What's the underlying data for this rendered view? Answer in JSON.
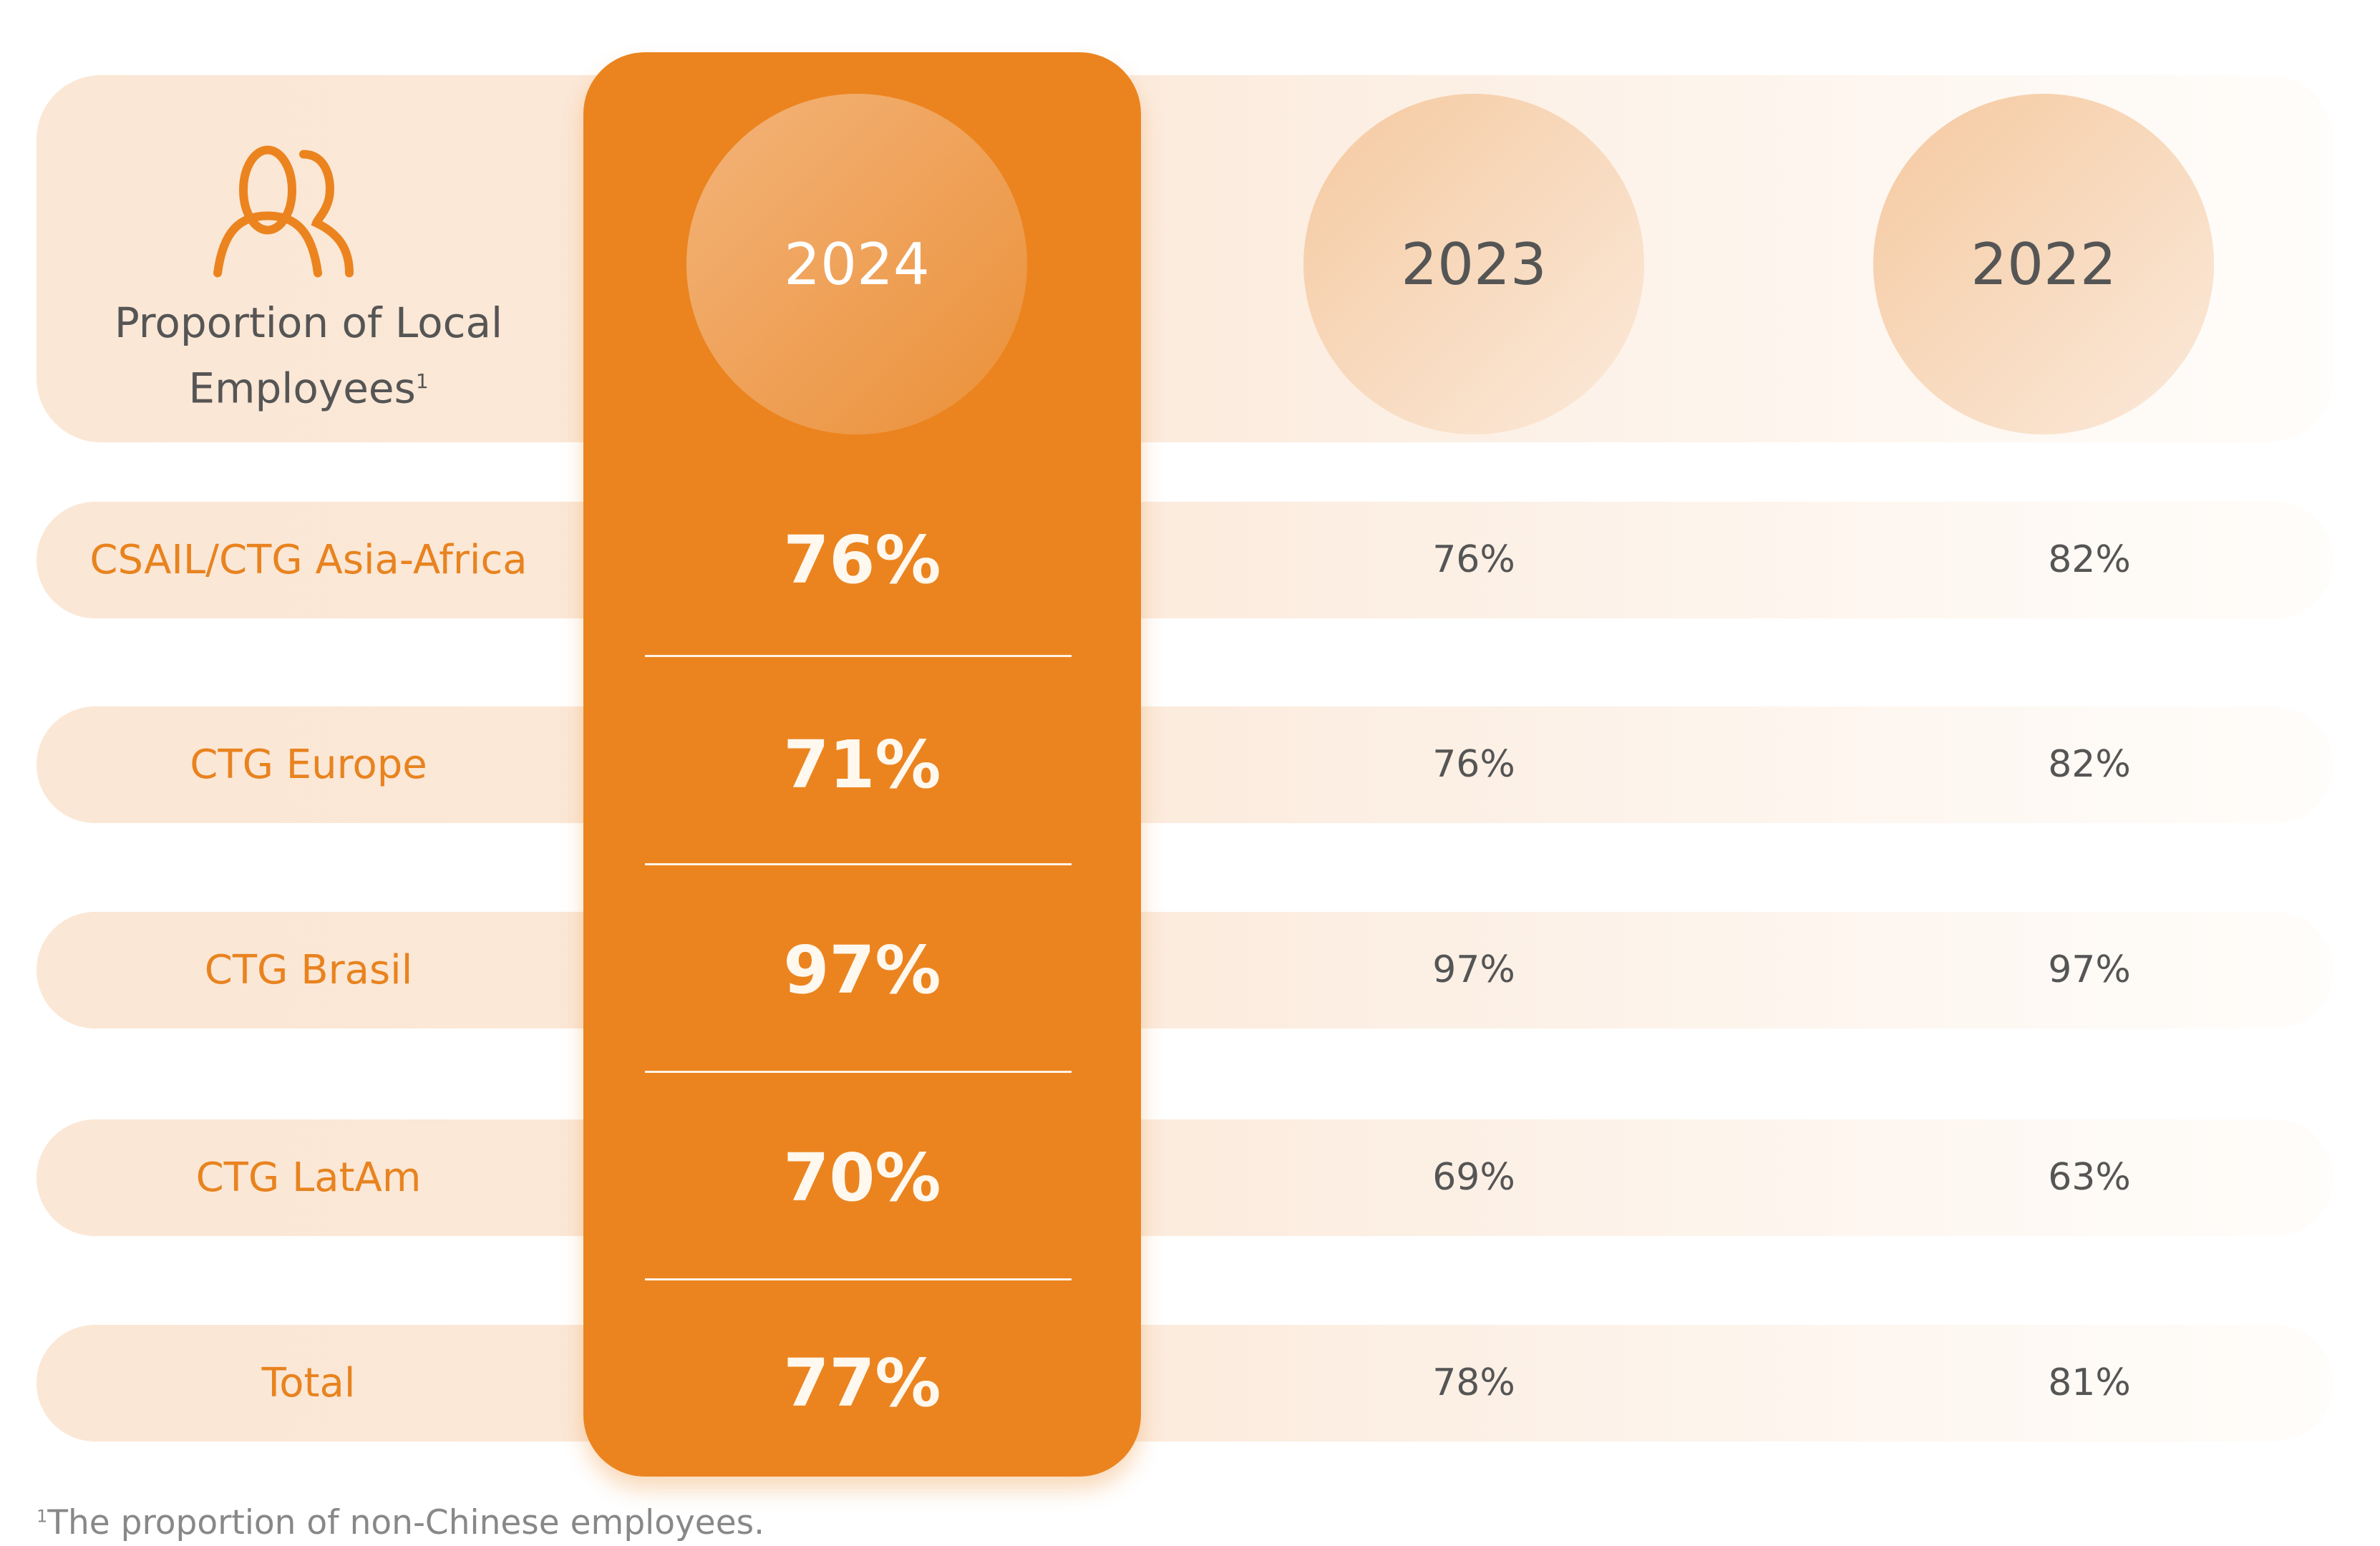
{
  "header": {
    "title": "Proportion of Local Employees",
    "title_footnote_mark": "1",
    "icon": "people-icon"
  },
  "years": [
    "2024",
    "2023",
    "2022"
  ],
  "rows": [
    {
      "label": "CSAIL/CTG Asia-Africa",
      "y2024": "76%",
      "y2023": "76%",
      "y2022": "82%"
    },
    {
      "label": "CTG Europe",
      "y2024": "71%",
      "y2023": "76%",
      "y2022": "82%"
    },
    {
      "label": "CTG Brasil",
      "y2024": "97%",
      "y2023": "97%",
      "y2022": "97%"
    },
    {
      "label": "CTG LatAm",
      "y2024": "70%",
      "y2023": "69%",
      "y2022": "63%"
    },
    {
      "label": "Total",
      "y2024": "77%",
      "y2023": "78%",
      "y2022": "81%"
    }
  ],
  "footnote": {
    "mark": "1",
    "text": "The proportion of non-Chinese employees."
  },
  "colors": {
    "accent": "#eb841f",
    "band": "#fbe7d5",
    "text": "#555555"
  }
}
